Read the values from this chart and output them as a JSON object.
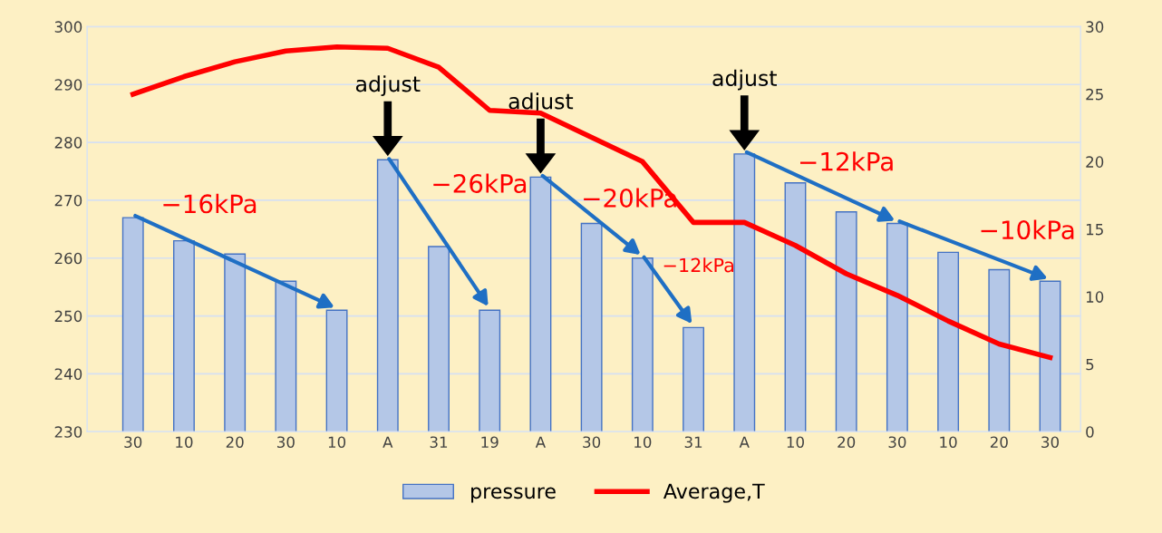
{
  "chart_data": {
    "type": "bar",
    "categories": [
      "30",
      "10",
      "20",
      "30",
      "10",
      "A",
      "31",
      "19",
      "A",
      "30",
      "10",
      "31",
      "A",
      "10",
      "20",
      "30",
      "10",
      "20",
      "30"
    ],
    "series": [
      {
        "name": "pressure",
        "color": "#b4c7e7",
        "values": [
          267,
          263,
          260.7,
          256,
          251,
          277,
          262,
          251,
          274,
          266,
          260,
          248,
          278,
          273,
          268,
          266,
          261,
          258,
          256
        ]
      },
      {
        "name": "Average,T",
        "type": "line",
        "axis": "y2",
        "color": "#ff0000",
        "values": [
          25.0,
          26.3,
          27.4,
          28.2,
          28.5,
          28.4,
          27.0,
          23.8,
          23.6,
          21.8,
          20.0,
          15.5,
          15.5,
          13.8,
          11.7,
          10.1,
          8.2,
          6.5,
          5.5
        ]
      }
    ],
    "ylim": [
      230,
      300
    ],
    "yticks": [
      230,
      240,
      250,
      260,
      270,
      280,
      290,
      300
    ],
    "y2lim": [
      0,
      30
    ],
    "y2ticks": [
      0,
      5,
      10,
      15,
      20,
      25,
      30
    ],
    "grid": "y",
    "legend": "bottom",
    "marker": "none",
    "line_style": "solid",
    "annotations": [
      "adjust",
      "adjust",
      "adjust",
      "−16kPa",
      "−26kPa",
      "−20kPa",
      "−12kPa",
      "−12kPa",
      "−10kPa"
    ]
  }
}
